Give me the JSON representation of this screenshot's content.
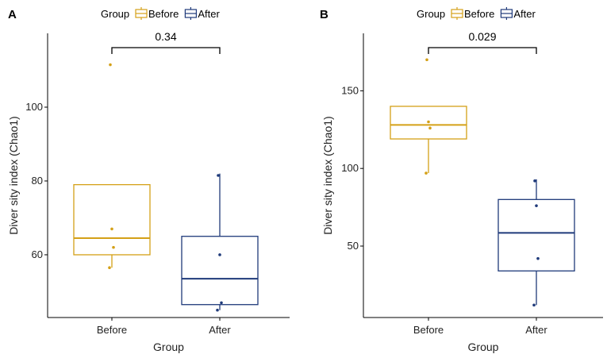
{
  "colors": {
    "before": "#D4A017",
    "after": "#1F3A7A",
    "axis": "#000000"
  },
  "chart_data": [
    {
      "type": "box",
      "panel_label": "A",
      "legend": {
        "title": "Group",
        "entries": [
          "Before",
          "After"
        ],
        "placement": "top"
      },
      "xlabel": "Group",
      "ylabel": "Diver sity index (Chao1)",
      "ylim": [
        43,
        120
      ],
      "yticks": [
        60,
        80,
        100
      ],
      "categories": [
        "Before",
        "After"
      ],
      "boxes": [
        {
          "name": "Before",
          "whisker_low": 56.5,
          "q1": 60,
          "median": 64.5,
          "q3": 79,
          "whisker_high": 79,
          "points": [
            111.5,
            67,
            62,
            56.5
          ]
        },
        {
          "name": "After",
          "whisker_low": 45,
          "q1": 46.5,
          "median": 53.5,
          "q3": 65,
          "whisker_high": 82,
          "points": [
            81.5,
            60,
            47,
            45
          ]
        }
      ],
      "comparison": {
        "from": "Before",
        "to": "After",
        "p_value": "0.34"
      }
    },
    {
      "type": "box",
      "panel_label": "B",
      "legend": {
        "title": "Group",
        "entries": [
          "Before",
          "After"
        ],
        "placement": "top"
      },
      "xlabel": "Group",
      "ylabel": "Diver sity index (Chao1)",
      "ylim": [
        4,
        187
      ],
      "yticks": [
        50,
        100,
        150
      ],
      "categories": [
        "Before",
        "After"
      ],
      "boxes": [
        {
          "name": "Before",
          "whisker_low": 97,
          "q1": 119,
          "median": 128,
          "q3": 140,
          "whisker_high": 140,
          "points": [
            170,
            130,
            126,
            97
          ]
        },
        {
          "name": "After",
          "whisker_low": 12,
          "q1": 34,
          "median": 58.5,
          "q3": 80,
          "whisker_high": 93,
          "points": [
            92,
            76,
            42,
            12
          ]
        }
      ],
      "comparison": {
        "from": "Before",
        "to": "After",
        "p_value": "0.029"
      }
    }
  ]
}
